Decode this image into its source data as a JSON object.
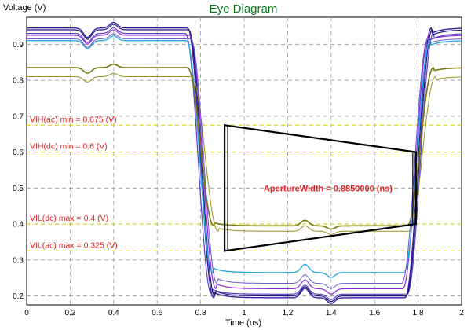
{
  "chart_data": {
    "type": "line",
    "title": "Eye Diagram",
    "xlabel": "Time (ns)",
    "ylabel": "Voltage (V)",
    "xlim": [
      0,
      2
    ],
    "ylim": [
      0.175,
      0.975
    ],
    "x_ticks": [
      "0",
      "0.2",
      "0.4",
      "0.6",
      "0.8",
      "1",
      "1.2",
      "1.4",
      "1.6",
      "1.8",
      "2"
    ],
    "y_ticks": [
      "0.2",
      "0.3",
      "0.4",
      "0.5",
      "0.6",
      "0.7",
      "0.8",
      "0.9"
    ],
    "grid": true,
    "background": "#ffffff",
    "colors": {
      "grid": "#999999",
      "levels": "#d8d200",
      "labels": "#e02424",
      "aperture": "#000000",
      "title": "#0a7a22"
    },
    "levels": [
      {
        "label": "VIH(ac) min = 0.675 (V)",
        "value": 0.675
      },
      {
        "label": "VIH(dc) min = 0.6 (V)",
        "value": 0.6
      },
      {
        "label": "VIL(dc) max = 0.4 (V)",
        "value": 0.4
      },
      {
        "label": "VIL(ac) max = 0.325 (V)",
        "value": 0.325
      }
    ],
    "aperture": {
      "label": "ApertureWidth = 0.8850000 (ns)",
      "left": {
        "x": 0.91,
        "top": 0.675,
        "bottom": 0.325
      },
      "right": {
        "x": 1.79,
        "top": 0.6,
        "bottom": 0.4
      }
    },
    "transitions": {
      "fall": 0.8,
      "rise": 1.8
    },
    "series": [
      {
        "color": "#3b1fa0",
        "high": 0.945,
        "low": 0.195,
        "fall_delay": 0.0,
        "rise_delay": 0.0,
        "width": 1.4
      },
      {
        "color": "#5b3ec8",
        "high": 0.93,
        "low": 0.205,
        "fall_delay": -0.01,
        "rise_delay": 0.01,
        "width": 1.2
      },
      {
        "color": "#8a2be2",
        "high": 0.925,
        "low": 0.22,
        "fall_delay": 0.01,
        "rise_delay": -0.01,
        "width": 1.2
      },
      {
        "color": "#1a1a7a",
        "high": 0.94,
        "low": 0.2,
        "fall_delay": 0.005,
        "rise_delay": 0.005,
        "width": 1.2
      },
      {
        "color": "#2aa7e6",
        "high": 0.91,
        "low": 0.265,
        "fall_delay": -0.005,
        "rise_delay": -0.005,
        "width": 1.4
      },
      {
        "color": "#78760c",
        "high": 0.835,
        "low": 0.395,
        "fall_delay": 0.0,
        "rise_delay": 0.01,
        "width": 1.6
      },
      {
        "color": "#9a9220",
        "high": 0.81,
        "low": 0.38,
        "fall_delay": 0.02,
        "rise_delay": 0.02,
        "width": 1.0
      },
      {
        "color": "#6a5acd",
        "high": 0.915,
        "low": 0.235,
        "fall_delay": 0.015,
        "rise_delay": -0.015,
        "width": 1.0
      }
    ]
  }
}
